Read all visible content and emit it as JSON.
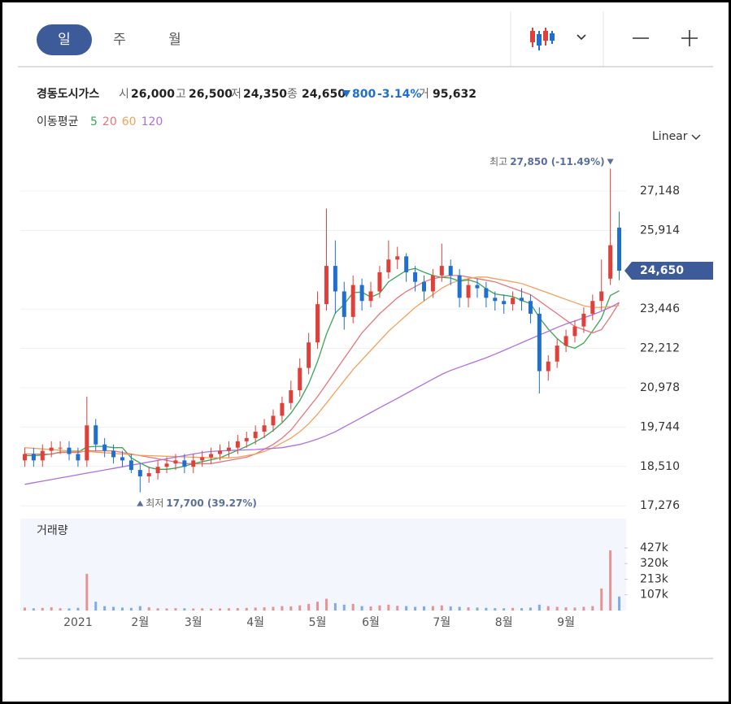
{
  "header": {
    "tabs": [
      "일",
      "주",
      "월"
    ],
    "name": "경동도시가스",
    "quote": [
      {
        "label": "시",
        "value": "26,000"
      },
      {
        "label": "고",
        "value": "26,500"
      },
      {
        "label": "저",
        "value": "24,350"
      },
      {
        "label": "종",
        "value": "24,650"
      }
    ],
    "change": "800",
    "change_rate": "-3.14%",
    "volume": {
      "label": "거",
      "value": "95,632"
    }
  },
  "chart_data": {
    "type": "candlestick",
    "scale": "Linear",
    "moving_average_label": "이동평균",
    "volume_label": "거래량",
    "up_color": "#e0403a",
    "down_color": "#1f6fd1",
    "categories": [
      null,
      null,
      null,
      null,
      null,
      null,
      "2021",
      null,
      null,
      null,
      null,
      null,
      null,
      "2월",
      null,
      null,
      null,
      null,
      null,
      "3월",
      null,
      null,
      null,
      null,
      null,
      null,
      "4월",
      null,
      null,
      null,
      null,
      null,
      null,
      "5월",
      null,
      null,
      null,
      null,
      null,
      "6월",
      null,
      null,
      null,
      null,
      null,
      null,
      null,
      "7월",
      null,
      null,
      null,
      null,
      null,
      null,
      "8월",
      null,
      null,
      null,
      null,
      null,
      null,
      "9월",
      null,
      null,
      null,
      null,
      null,
      null
    ],
    "open": [
      18700,
      18900,
      18700,
      19000,
      19100,
      19100,
      18900,
      18700,
      19800,
      19200,
      19000,
      18800,
      18700,
      18400,
      18200,
      18300,
      18500,
      18600,
      18700,
      18500,
      18700,
      18800,
      18900,
      19000,
      19100,
      19300,
      19400,
      19600,
      19800,
      20100,
      20500,
      20900,
      21600,
      22400,
      23600,
      24800,
      24000,
      23200,
      24200,
      23700,
      24000,
      24600,
      25000,
      25100,
      24600,
      24300,
      24000,
      24500,
      24800,
      24500,
      23800,
      24200,
      24100,
      23800,
      23700,
      23600,
      23800,
      23700,
      23300,
      21500,
      21800,
      22300,
      22600,
      22900,
      23300,
      23700,
      24400,
      26000
    ],
    "high": [
      19100,
      19100,
      19200,
      19300,
      19300,
      19300,
      19100,
      20700,
      20000,
      19400,
      19200,
      19000,
      18900,
      18600,
      18500,
      18700,
      18800,
      18900,
      18900,
      18900,
      19000,
      19100,
      19200,
      19300,
      19500,
      19600,
      19800,
      20000,
      20300,
      20700,
      21200,
      21900,
      22700,
      24000,
      26600,
      25600,
      24300,
      24500,
      24400,
      24300,
      24800,
      25600,
      25400,
      25200,
      24800,
      24500,
      24700,
      25500,
      25000,
      24700,
      24400,
      24400,
      24300,
      24000,
      23900,
      24000,
      24100,
      23900,
      23500,
      22000,
      22500,
      22800,
      23100,
      23500,
      23900,
      25000,
      27850,
      26500
    ],
    "low": [
      18500,
      18500,
      18500,
      18800,
      18900,
      18700,
      18500,
      18500,
      19000,
      18800,
      18600,
      18500,
      18300,
      17700,
      18000,
      18100,
      18300,
      18400,
      18300,
      18300,
      18500,
      18600,
      18700,
      18800,
      18900,
      19100,
      19200,
      19400,
      19600,
      19900,
      20300,
      20700,
      21400,
      22200,
      23400,
      23300,
      22800,
      23000,
      23400,
      23500,
      23800,
      24400,
      24700,
      24300,
      24000,
      23700,
      23800,
      24300,
      24200,
      23500,
      23500,
      23800,
      23500,
      23400,
      23300,
      23400,
      23400,
      23000,
      20800,
      21200,
      21600,
      22100,
      22400,
      22700,
      23100,
      23400,
      24200,
      24350
    ],
    "close": [
      18900,
      18700,
      19000,
      19100,
      19100,
      18900,
      18700,
      19800,
      19200,
      19000,
      18800,
      18700,
      18400,
      18200,
      18300,
      18500,
      18600,
      18700,
      18500,
      18700,
      18800,
      18900,
      19000,
      19100,
      19300,
      19400,
      19600,
      19800,
      20100,
      20500,
      20900,
      21600,
      22400,
      23600,
      24800,
      24000,
      23200,
      24200,
      23700,
      24000,
      24600,
      25000,
      25100,
      24600,
      24300,
      24000,
      24500,
      24800,
      24500,
      23800,
      24200,
      24100,
      23800,
      23700,
      23600,
      23800,
      23700,
      23300,
      21500,
      21800,
      22300,
      22600,
      22900,
      23300,
      23700,
      24000,
      25450,
      24650
    ],
    "volume": [
      20000,
      15000,
      18000,
      22000,
      15000,
      14000,
      18000,
      250000,
      60000,
      30000,
      25000,
      20000,
      18000,
      30000,
      22000,
      15000,
      14000,
      16000,
      15000,
      14000,
      15000,
      13000,
      14000,
      15000,
      16000,
      18000,
      20000,
      22000,
      25000,
      30000,
      28000,
      35000,
      45000,
      60000,
      80000,
      50000,
      40000,
      45000,
      30000,
      28000,
      35000,
      40000,
      32000,
      30000,
      25000,
      28000,
      30000,
      35000,
      28000,
      25000,
      22000,
      20000,
      18000,
      16000,
      15000,
      18000,
      16000,
      20000,
      40000,
      30000,
      25000,
      22000,
      20000,
      25000,
      30000,
      150000,
      410000,
      95632
    ],
    "moving_averages": [
      {
        "name": "5",
        "color": "#3aa657",
        "values": [
          18850,
          18850,
          18870,
          18900,
          18960,
          18960,
          18960,
          19120,
          19140,
          19140,
          19100,
          19100,
          18780,
          18620,
          18480,
          18420,
          18420,
          18460,
          18520,
          18600,
          18660,
          18720,
          18780,
          18900,
          19020,
          19140,
          19280,
          19440,
          19640,
          19880,
          20180,
          20580,
          21100,
          21800,
          22660,
          23320,
          23600,
          23960,
          23980,
          23820,
          23940,
          24300,
          24480,
          24660,
          24720,
          24600,
          24500,
          24440,
          24420,
          24320,
          24360,
          24280,
          24080,
          23920,
          23880,
          23840,
          23720,
          23620,
          23180,
          22820,
          22520,
          22300,
          22220,
          22380,
          22760,
          23160,
          23870,
          24020
        ]
      },
      {
        "name": "20",
        "color": "#e8757a",
        "values": [
          18900,
          18900,
          18900,
          18900,
          18950,
          18950,
          18950,
          19000,
          19000,
          19000,
          19000,
          18950,
          18900,
          18850,
          18800,
          18750,
          18700,
          18650,
          18600,
          18600,
          18600,
          18600,
          18650,
          18700,
          18750,
          18800,
          18900,
          19050,
          19200,
          19400,
          19650,
          20000,
          20350,
          20700,
          21100,
          21500,
          21900,
          22300,
          22700,
          23000,
          23300,
          23550,
          23800,
          24000,
          24150,
          24300,
          24400,
          24450,
          24500,
          24500,
          24450,
          24400,
          24350,
          24300,
          24200,
          24100,
          24000,
          23900,
          23700,
          23500,
          23300,
          23100,
          22900,
          22800,
          22700,
          22800,
          23200,
          23650
        ]
      },
      {
        "name": "60",
        "color": "#f4a05a",
        "values": [
          19100,
          19080,
          19060,
          19040,
          19020,
          19000,
          19000,
          18980,
          18960,
          18940,
          18920,
          18900,
          18880,
          18860,
          18850,
          18840,
          18830,
          18820,
          18810,
          18800,
          18790,
          18780,
          18780,
          18780,
          18800,
          18850,
          18900,
          18980,
          19100,
          19250,
          19400,
          19600,
          19850,
          20150,
          20500,
          20850,
          21200,
          21550,
          21850,
          22150,
          22450,
          22750,
          23000,
          23250,
          23500,
          23700,
          23900,
          24100,
          24250,
          24350,
          24400,
          24450,
          24450,
          24400,
          24350,
          24300,
          24250,
          24150,
          24050,
          23950,
          23850,
          23750,
          23650,
          23550,
          23500,
          23500,
          23520,
          23560
        ]
      },
      {
        "name": "120",
        "color": "#b070e0",
        "values": [
          17950,
          18000,
          18050,
          18100,
          18150,
          18200,
          18250,
          18300,
          18350,
          18400,
          18450,
          18500,
          18550,
          18600,
          18650,
          18700,
          18750,
          18800,
          18850,
          18900,
          18950,
          18980,
          19000,
          19010,
          19020,
          19030,
          19040,
          19060,
          19080,
          19100,
          19150,
          19200,
          19280,
          19370,
          19480,
          19600,
          19750,
          19900,
          20050,
          20200,
          20350,
          20500,
          20650,
          20800,
          20950,
          21100,
          21250,
          21400,
          21520,
          21620,
          21720,
          21820,
          21920,
          22030,
          22150,
          22270,
          22390,
          22510,
          22630,
          22750,
          22870,
          22980,
          23070,
          23170,
          23270,
          23380,
          23500,
          23650
        ]
      }
    ],
    "ylim": [
      16950,
      28550
    ],
    "yticks": [
      {
        "value": 17276,
        "label": "17,276"
      },
      {
        "value": 18510,
        "label": "18,510"
      },
      {
        "value": 19744,
        "label": "19,744"
      },
      {
        "value": 20978,
        "label": "20,978"
      },
      {
        "value": 22212,
        "label": "22,212"
      },
      {
        "value": 23446,
        "label": "23,446"
      },
      {
        "value": 25914,
        "label": "25,914"
      },
      {
        "value": 27148,
        "label": "27,148"
      }
    ],
    "volume_ylim": [
      0,
      615000
    ],
    "volume_yticks": [
      {
        "value": 107000,
        "label": "107k"
      },
      {
        "value": 213000,
        "label": "213k"
      },
      {
        "value": 320000,
        "label": "320k"
      },
      {
        "value": 427000,
        "label": "427k"
      }
    ],
    "max_annotation": {
      "label": "최고",
      "text": "27,850 (-11.49%)"
    },
    "min_annotation": {
      "label": "최저",
      "text": "17,700 (39.27%)"
    }
  }
}
